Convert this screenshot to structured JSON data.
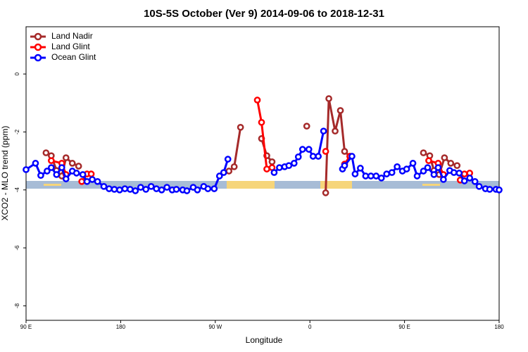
{
  "chart_data": {
    "type": "line",
    "title": "10S-5S October (Ver 9)   2014-09-06 to 2018-12-31",
    "x_label": "Longitude",
    "y_label": "XCO2 - MLO trend (ppm)",
    "xlim": [
      90,
      540
    ],
    "ylim": [
      -8.5,
      1.63
    ],
    "xticks": [
      {
        "value": 90,
        "label": "90 E"
      },
      {
        "value": 180,
        "label": "180"
      },
      {
        "value": 270,
        "label": "90 W"
      },
      {
        "value": 360,
        "label": "0"
      },
      {
        "value": 450,
        "label": "90 E"
      },
      {
        "value": 540,
        "label": "180"
      }
    ],
    "yticks": [
      0,
      -2,
      -4,
      -6,
      -8
    ],
    "legend": "top-left",
    "series": [
      {
        "name": "Land Nadir",
        "color": "#a52a2a",
        "x": [
          109,
          114,
          119,
          124,
          128,
          134,
          140,
          200,
          283,
          288,
          294,
          300,
          357,
          340,
          314,
          319,
          324,
          350,
          375,
          378,
          384,
          389,
          393,
          398,
          430,
          468,
          474,
          478,
          483,
          488,
          494,
          500
        ],
        "values": [
          -2.72,
          -2.82,
          -3.33,
          -3.52,
          -2.89,
          -3.08,
          -3.18,
          null,
          -3.35,
          -3.2,
          -1.84,
          null,
          -1.8,
          null,
          -2.23,
          -2.82,
          -3.03,
          null,
          -4.1,
          -0.85,
          -1.97,
          -1.26,
          -2.67,
          -2.84,
          null,
          -2.72,
          -2.82,
          -3.33,
          -3.47,
          -2.89,
          -3.08,
          -3.16
        ]
      },
      {
        "name": "Land Glint",
        "color": "#ff0000",
        "x": [
          114,
          124,
          128,
          135,
          143,
          148,
          152,
          250,
          310,
          314,
          319,
          324,
          350,
          375,
          385,
          393,
          398,
          430,
          473,
          482,
          487,
          495,
          503,
          507,
          512
        ],
        "values": [
          -2.99,
          -3.08,
          -3.47,
          null,
          -3.71,
          -3.45,
          -3.45,
          null,
          -0.9,
          -1.67,
          -3.28,
          -3.23,
          null,
          -2.67,
          null,
          -3.11,
          -2.84,
          null,
          -2.99,
          -3.08,
          -3.47,
          null,
          -3.66,
          -3.45,
          -3.42
        ]
      },
      {
        "name": "Ocean Glint",
        "color": "#0000ff",
        "x": [
          90,
          99,
          104,
          110,
          114,
          119,
          124,
          128,
          134,
          138,
          144,
          148,
          153,
          158,
          164,
          169,
          174,
          179,
          184,
          189,
          194,
          199,
          204,
          209,
          214,
          219,
          224,
          229,
          233,
          239,
          243,
          249,
          253,
          259,
          263,
          269,
          274,
          278,
          282,
          300,
          326,
          331,
          336,
          340,
          345,
          349,
          353,
          359,
          363,
          368,
          373,
          380,
          391,
          393,
          400,
          403,
          408,
          413,
          418,
          423,
          428,
          433,
          438,
          443,
          448,
          452,
          458,
          462,
          468,
          472,
          478,
          482,
          487,
          493,
          497,
          502,
          507,
          512,
          517,
          521,
          527,
          531,
          537,
          540
        ],
        "values": [
          -3.3,
          -3.08,
          -3.5,
          -3.35,
          -3.23,
          -3.47,
          -3.23,
          -3.62,
          -3.35,
          -3.42,
          -3.47,
          -3.71,
          -3.64,
          -3.71,
          -3.88,
          -3.96,
          -3.98,
          -4.0,
          -3.96,
          -3.98,
          -4.03,
          -3.91,
          -3.98,
          -3.88,
          -3.96,
          -4.0,
          -3.91,
          -4.0,
          -3.98,
          -4.0,
          -4.03,
          -3.91,
          -4.0,
          -3.88,
          -3.96,
          -3.96,
          -3.52,
          -3.4,
          -2.94,
          null,
          -3.4,
          -3.23,
          -3.2,
          -3.16,
          -3.08,
          -2.86,
          -2.6,
          -2.6,
          -2.84,
          -2.84,
          -1.97,
          null,
          -3.28,
          -3.16,
          -2.84,
          -3.45,
          -3.25,
          -3.52,
          -3.52,
          -3.52,
          -3.59,
          -3.45,
          -3.4,
          -3.2,
          -3.35,
          -3.28,
          -3.08,
          -3.52,
          -3.35,
          -3.23,
          -3.47,
          -3.23,
          -3.64,
          -3.33,
          -3.4,
          -3.42,
          -3.69,
          -3.59,
          -3.71,
          -3.88,
          -3.96,
          -3.98,
          -3.98,
          -4.0
        ]
      }
    ]
  }
}
